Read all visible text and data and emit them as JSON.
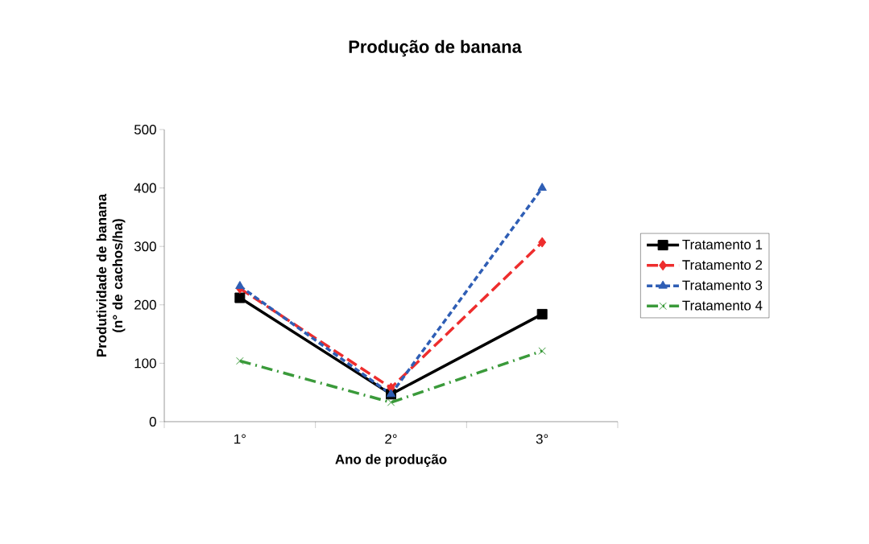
{
  "chart_data": {
    "type": "line",
    "title": "Produção de banana",
    "xlabel": "Ano de produção",
    "ylabel": "Produtividade de banana (n° de cachos/ha)",
    "categories": [
      "1°",
      "2°",
      "3°"
    ],
    "series": [
      {
        "name": "Tratamento 1",
        "color": "#000000",
        "values": [
          212,
          47,
          184
        ],
        "marker": "square",
        "line_style": "solid"
      },
      {
        "name": "Tratamento 2",
        "color": "#ee2d2d",
        "values": [
          228,
          58,
          307
        ],
        "marker": "diamond",
        "line_style": "long dashed"
      },
      {
        "name": "Tratamento 3",
        "color": "#2f5eb5",
        "values": [
          232,
          47,
          400
        ],
        "marker": "triangle",
        "line_style": "dashed"
      },
      {
        "name": "Tratamento 4",
        "color": "#3a9a3a",
        "values": [
          104,
          33,
          121
        ],
        "marker": "cross",
        "line_style": "dash dot"
      }
    ],
    "ylim": [
      0,
      500
    ],
    "yticks": [
      0,
      100,
      200,
      300,
      400,
      500
    ],
    "grid": false,
    "legend": "right"
  }
}
